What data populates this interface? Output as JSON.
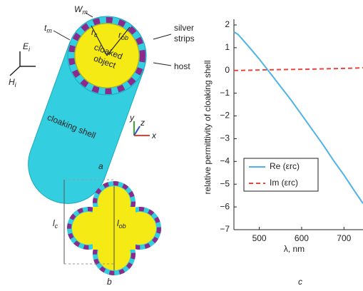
{
  "figure": {
    "panel_a": {
      "label": "a",
      "wm": {
        "main": "W",
        "sub": "m"
      },
      "tm": {
        "main": "t",
        "sub": "m"
      },
      "rc": {
        "main": "r",
        "sub": "c"
      },
      "rob": {
        "main": "r",
        "sub": "ob"
      },
      "silver_strips": [
        "silver",
        "strips"
      ],
      "cloaked_object": [
        "cloaked",
        "object"
      ],
      "host": "host",
      "ei": {
        "main": "E",
        "sub": "i"
      },
      "hi": {
        "main": "H",
        "sub": "i"
      },
      "shell": "cloaking shell",
      "axes": [
        "y",
        "z",
        "x"
      ]
    },
    "panel_b": {
      "label": "b",
      "lc": {
        "main": "l",
        "sub": "c"
      },
      "lob": {
        "main": "l",
        "sub": "ob"
      }
    },
    "panel_c": {
      "label": "c"
    }
  },
  "chart_data": {
    "type": "line",
    "x_label": "λ, nm",
    "y_label": "relative permittivity of cloaking shell",
    "x": [
      440,
      450,
      475,
      500,
      525,
      550,
      575,
      600,
      625,
      650,
      675,
      700,
      725,
      745
    ],
    "series": [
      {
        "name": "Re (εrc)",
        "color": "#4fb3e8",
        "dash": false,
        "values": [
          1.7,
          1.58,
          1.05,
          0.5,
          -0.1,
          -0.7,
          -1.3,
          -1.95,
          -2.6,
          -3.25,
          -3.95,
          -4.6,
          -5.3,
          -5.85
        ]
      },
      {
        "name": "Im (εrc)",
        "color": "#e8453c",
        "dash": true,
        "values": [
          0.0,
          0.0,
          0.01,
          0.02,
          0.03,
          0.04,
          0.045,
          0.05,
          0.06,
          0.07,
          0.08,
          0.09,
          0.1,
          0.12
        ]
      }
    ],
    "xlim": [
      440,
      745
    ],
    "ylim": [
      -7,
      2
    ],
    "xticks": [
      500,
      600,
      700
    ],
    "yticks": [
      2,
      1,
      0,
      {
        "value": -1,
        "label": "−1"
      },
      {
        "value": -2,
        "label": "−2"
      },
      {
        "value": -3,
        "label": "−3"
      },
      {
        "value": -4,
        "label": "−4"
      },
      {
        "value": -5,
        "label": "−5"
      },
      {
        "value": -6,
        "label": "−6"
      },
      {
        "value": -7,
        "label": "−7"
      }
    ],
    "legend": "center left"
  }
}
